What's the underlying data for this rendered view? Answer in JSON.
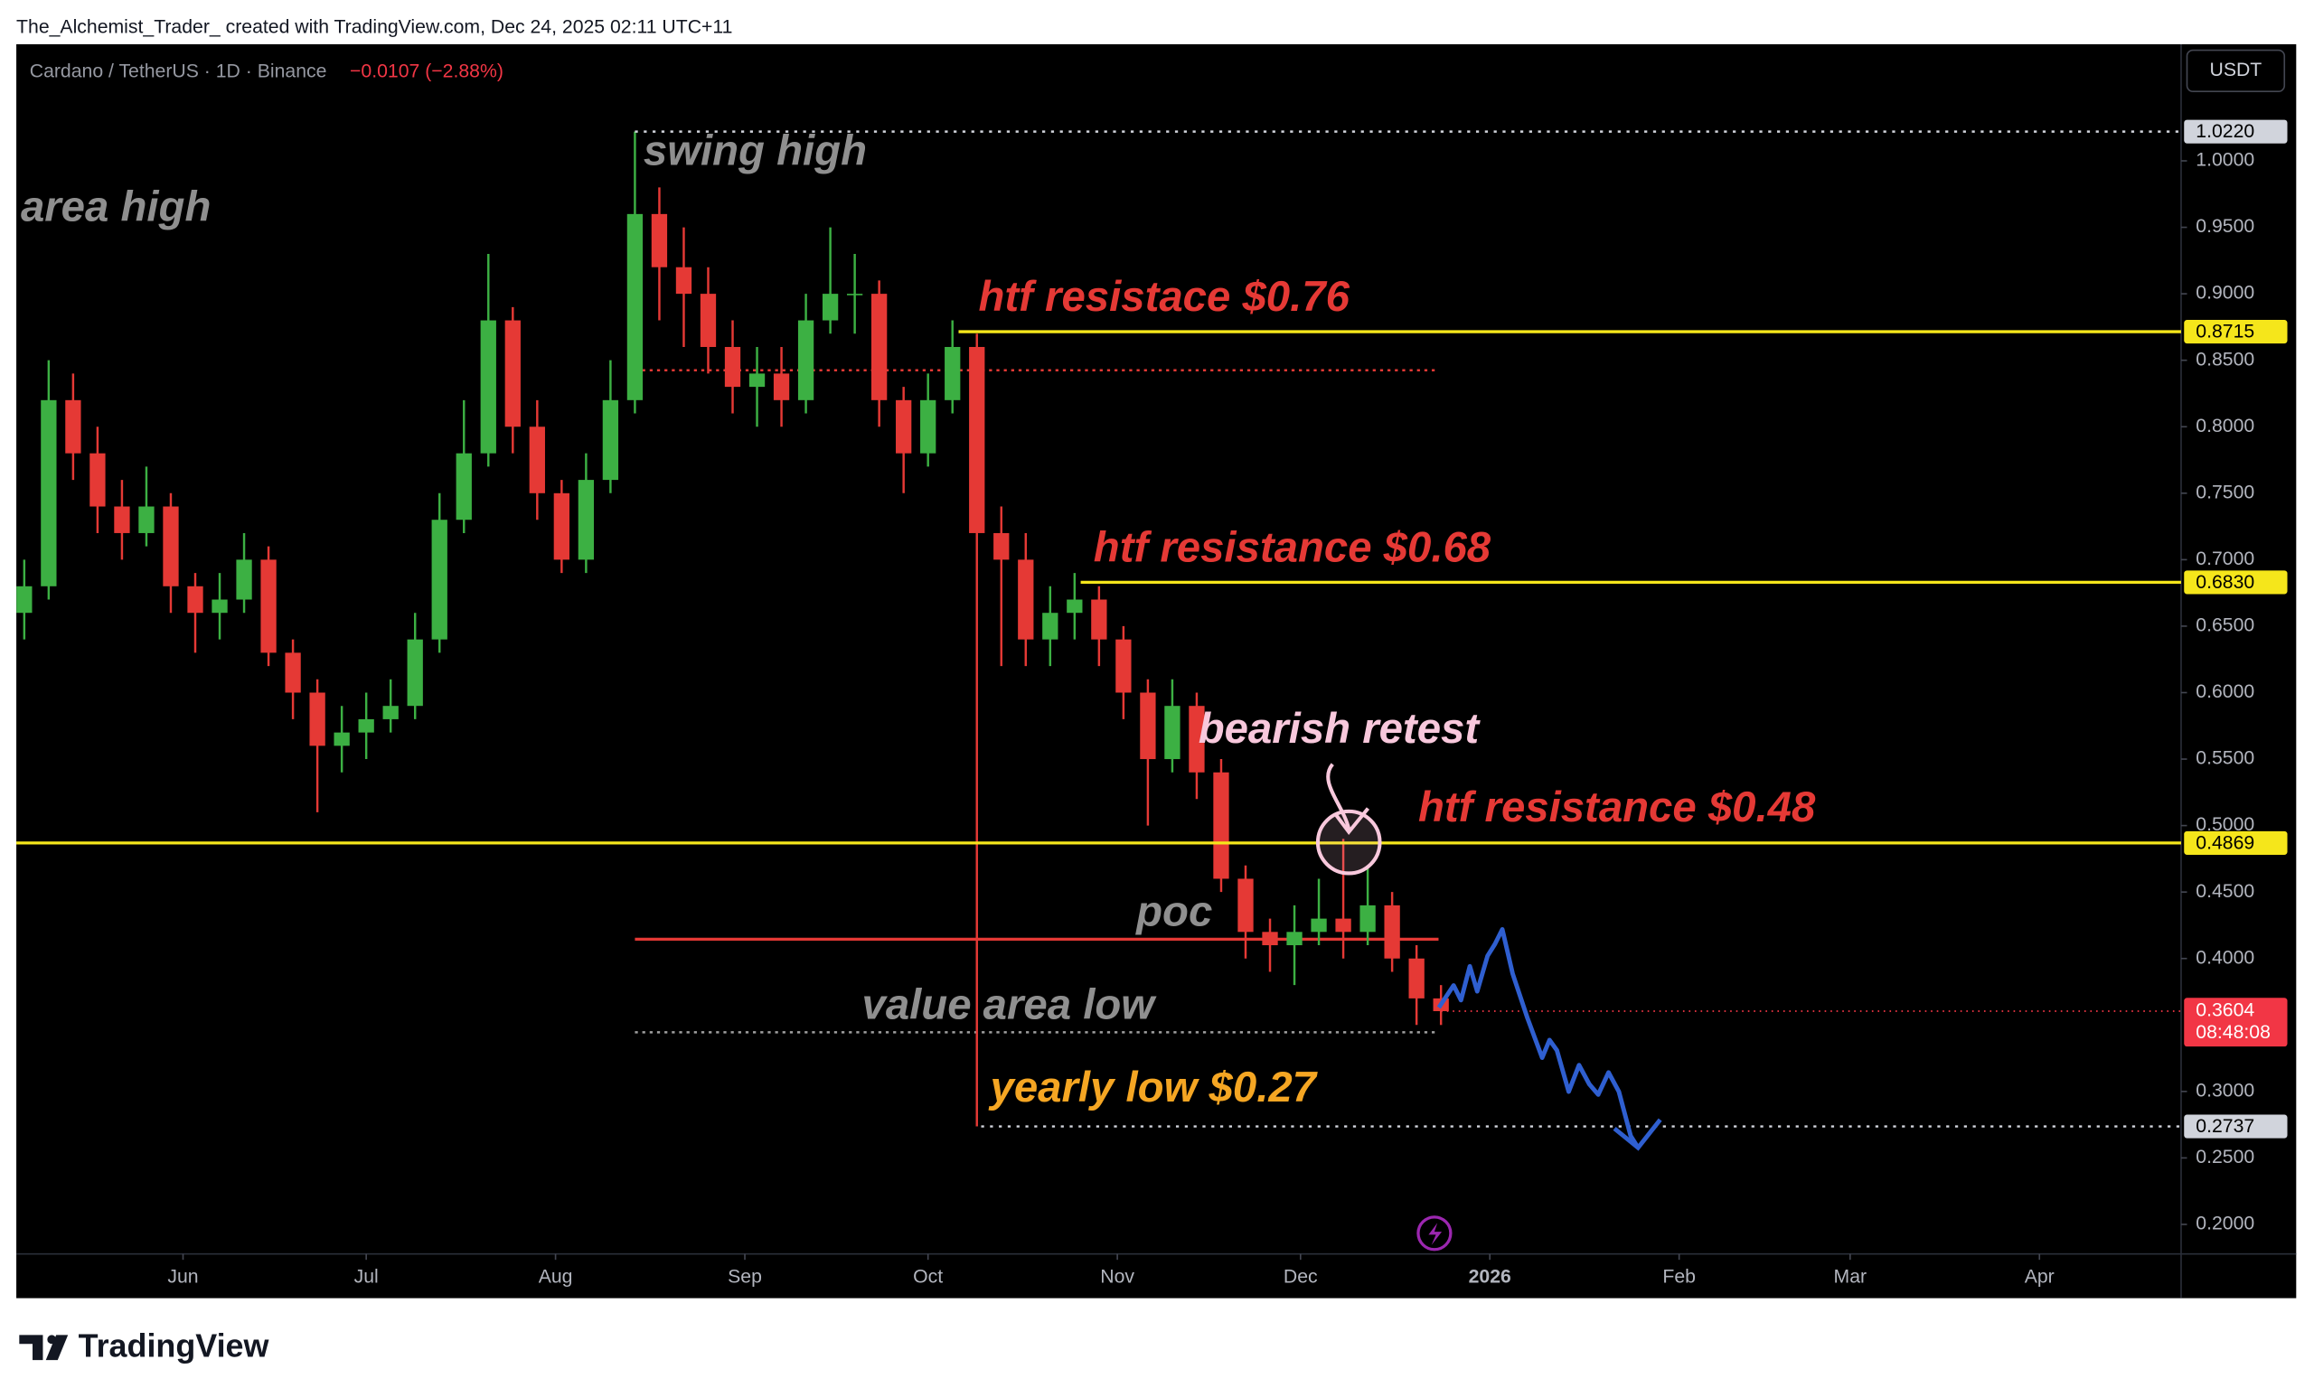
{
  "header": {
    "attribution": "The_Alchemist_Trader_ created with TradingView.com, Dec 24, 2025 02:11 UTC+11"
  },
  "chart_data": {
    "type": "candlestick",
    "symbol": "Cardano / TetherUS · 1D · Binance",
    "change": "−0.0107 (−2.88%)",
    "currency": "USDT",
    "up_color": "#3cb043",
    "down_color": "#e53935",
    "x": [
      126,
      130,
      134,
      138,
      142,
      146,
      150,
      154,
      158,
      162,
      166,
      170,
      174,
      178,
      182,
      186,
      190,
      194,
      198,
      202,
      206,
      210,
      214,
      218,
      222,
      226,
      230,
      234,
      238,
      242,
      246,
      250,
      254,
      258,
      262,
      266,
      270,
      274,
      278,
      282,
      286,
      290,
      294,
      298,
      302,
      306,
      310,
      314,
      318,
      322,
      326,
      330,
      334,
      338,
      342,
      346,
      350,
      354,
      358
    ],
    "open": [
      0.66,
      0.68,
      0.82,
      0.78,
      0.74,
      0.72,
      0.74,
      0.68,
      0.66,
      0.67,
      0.7,
      0.63,
      0.6,
      0.56,
      0.57,
      0.58,
      0.59,
      0.64,
      0.73,
      0.78,
      0.88,
      0.8,
      0.75,
      0.7,
      0.76,
      0.82,
      0.96,
      0.92,
      0.9,
      0.86,
      0.83,
      0.84,
      0.82,
      0.88,
      0.9,
      0.9,
      0.82,
      0.78,
      0.82,
      0.86,
      0.72,
      0.7,
      0.64,
      0.66,
      0.67,
      0.64,
      0.6,
      0.55,
      0.59,
      0.54,
      0.46,
      0.42,
      0.41,
      0.42,
      0.43,
      0.42,
      0.44,
      0.4,
      0.37
    ],
    "high": [
      0.7,
      0.85,
      0.84,
      0.8,
      0.76,
      0.77,
      0.75,
      0.69,
      0.69,
      0.72,
      0.71,
      0.64,
      0.61,
      0.59,
      0.6,
      0.61,
      0.66,
      0.75,
      0.82,
      0.93,
      0.89,
      0.82,
      0.76,
      0.78,
      0.85,
      1.022,
      0.98,
      0.95,
      0.92,
      0.88,
      0.86,
      0.86,
      0.9,
      0.95,
      0.93,
      0.91,
      0.83,
      0.84,
      0.88,
      0.87,
      0.74,
      0.72,
      0.68,
      0.69,
      0.68,
      0.65,
      0.61,
      0.61,
      0.6,
      0.55,
      0.47,
      0.43,
      0.44,
      0.46,
      0.49,
      0.47,
      0.45,
      0.41,
      0.38
    ],
    "low": [
      0.64,
      0.67,
      0.76,
      0.72,
      0.7,
      0.71,
      0.66,
      0.63,
      0.64,
      0.66,
      0.62,
      0.58,
      0.51,
      0.54,
      0.55,
      0.57,
      0.58,
      0.63,
      0.72,
      0.77,
      0.78,
      0.73,
      0.69,
      0.69,
      0.75,
      0.81,
      0.88,
      0.86,
      0.84,
      0.81,
      0.8,
      0.8,
      0.81,
      0.87,
      0.87,
      0.8,
      0.75,
      0.77,
      0.81,
      0.2737,
      0.62,
      0.62,
      0.62,
      0.64,
      0.62,
      0.58,
      0.5,
      0.54,
      0.52,
      0.45,
      0.4,
      0.39,
      0.38,
      0.41,
      0.4,
      0.41,
      0.39,
      0.35,
      0.35
    ],
    "close": [
      0.68,
      0.82,
      0.78,
      0.74,
      0.72,
      0.74,
      0.68,
      0.66,
      0.67,
      0.7,
      0.63,
      0.6,
      0.56,
      0.57,
      0.58,
      0.59,
      0.64,
      0.73,
      0.78,
      0.88,
      0.8,
      0.75,
      0.7,
      0.76,
      0.82,
      0.96,
      0.92,
      0.9,
      0.86,
      0.83,
      0.84,
      0.82,
      0.88,
      0.9,
      0.9,
      0.82,
      0.78,
      0.82,
      0.86,
      0.72,
      0.7,
      0.64,
      0.66,
      0.67,
      0.64,
      0.6,
      0.55,
      0.59,
      0.54,
      0.46,
      0.42,
      0.41,
      0.42,
      0.43,
      0.42,
      0.44,
      0.4,
      0.37,
      0.3604
    ],
    "xlim": [
      124.7,
      479.2
    ],
    "xticks": [
      {
        "value": 152,
        "label": "Jun"
      },
      {
        "value": 182,
        "label": "Jul"
      },
      {
        "value": 213,
        "label": "Aug"
      },
      {
        "value": 244,
        "label": "Sep"
      },
      {
        "value": 274,
        "label": "Oct"
      },
      {
        "value": 305,
        "label": "Nov"
      },
      {
        "value": 335,
        "label": "Dec"
      },
      {
        "value": 366,
        "label": "2026",
        "emphasis": true
      },
      {
        "value": 397,
        "label": "Feb"
      },
      {
        "value": 425,
        "label": "Mar"
      },
      {
        "value": 456,
        "label": "Apr"
      }
    ],
    "ylim": [
      0.1778,
      1.0877
    ],
    "yticks": [
      {
        "value": 0.2,
        "label": "0.2000"
      },
      {
        "value": 0.25,
        "label": "0.2500"
      },
      {
        "value": 0.3,
        "label": "0.3000"
      },
      {
        "value": 0.4,
        "label": "0.4000"
      },
      {
        "value": 0.45,
        "label": "0.4500"
      },
      {
        "value": 0.5,
        "label": "0.5000"
      },
      {
        "value": 0.55,
        "label": "0.5500"
      },
      {
        "value": 0.6,
        "label": "0.6000"
      },
      {
        "value": 0.65,
        "label": "0.6500"
      },
      {
        "value": 0.7,
        "label": "0.7000"
      },
      {
        "value": 0.75,
        "label": "0.7500"
      },
      {
        "value": 0.8,
        "label": "0.8000"
      },
      {
        "value": 0.85,
        "label": "0.8500"
      },
      {
        "value": 0.9,
        "label": "0.9000"
      },
      {
        "value": 0.95,
        "label": "0.9500"
      },
      {
        "value": 1.0,
        "label": "1.0000"
      }
    ],
    "levels": [
      {
        "value": 1.022,
        "label": "1.0220",
        "color": "#d1d4dc",
        "style": "dotted",
        "start": 226
      },
      {
        "value": 0.8715,
        "label": "0.8715",
        "color": "#f5e61b",
        "style": "solid",
        "start": 279
      },
      {
        "value": 0.683,
        "label": "0.6830",
        "color": "#f5e61b",
        "style": "solid",
        "start": 299
      },
      {
        "value": 0.4869,
        "label": "0.4869",
        "color": "#f5e61b",
        "style": "solid"
      },
      {
        "value": 0.2737,
        "label": "0.2737",
        "color": "#d1d4dc",
        "style": "dotted",
        "start": 282.7
      }
    ],
    "zones": [
      {
        "value": 0.8425,
        "start": 226,
        "end": 357.6,
        "color": "#e53935",
        "style": "dotted"
      },
      {
        "value": 0.4145,
        "start": 226,
        "end": 357.6,
        "color": "#e53935",
        "style": "solid"
      },
      {
        "value": 0.3445,
        "start": 226,
        "end": 357.6,
        "color": "#9e9e9e",
        "style": "dotted"
      }
    ],
    "last_price": {
      "value": 0.3604,
      "label": "0.3604",
      "countdown": "08:48:08",
      "color": "#f23645"
    },
    "annotations": [
      {
        "text": "area high",
        "color": "#8f8f8f"
      },
      {
        "text": "swing high",
        "color": "#8f8f8f"
      },
      {
        "text": "htf resistace $0.76",
        "color": "#e53935"
      },
      {
        "text": "htf resistance $0.68",
        "color": "#e53935"
      },
      {
        "text": "bearish retest",
        "color": "#f8c8dc"
      },
      {
        "text": "htf resistance $0.48",
        "color": "#e53935"
      },
      {
        "text": "poc",
        "color": "#8f8f8f"
      },
      {
        "text": "value area low",
        "color": "#8f8f8f"
      },
      {
        "text": "yearly low $0.27",
        "color": "#f5a623"
      }
    ]
  },
  "footer": {
    "brand": "TradingView"
  }
}
